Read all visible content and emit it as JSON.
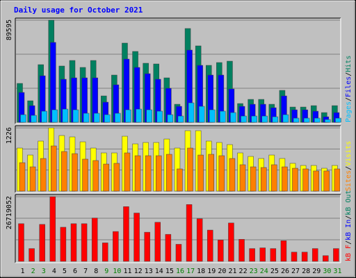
{
  "chart_data": [
    {
      "type": "bar",
      "title": "Daily usage for October 2021",
      "legend_separator": "/",
      "ylim": [
        0,
        89595
      ],
      "yticks": [
        89595
      ],
      "series": [
        {
          "name": "Hits",
          "color": "#008060",
          "values": [
            34132,
            18895,
            50590,
            89595,
            49370,
            54246,
            48151,
            54246,
            23161,
            41446,
            69483,
            62169,
            51808,
            51198,
            39008,
            15847,
            82283,
            67045,
            49979,
            52417,
            53636,
            16457,
            20114,
            20114,
            15847,
            28037,
            13409,
            13409,
            14628,
            8533,
            14628
          ]
        },
        {
          "name": "Files",
          "color": "#0000ff",
          "values": [
            26209,
            14628,
            40837,
            70093,
            37789,
            39008,
            39008,
            39008,
            17676,
            32913,
            55465,
            48151,
            42665,
            37789,
            29866,
            14019,
            63388,
            49979,
            41446,
            41446,
            29256,
            14019,
            15847,
            15847,
            12800,
            23161,
            10971,
            10971,
            9752,
            4876,
            8533
          ]
        },
        {
          "name": "Pages",
          "color": "#00c0ff",
          "values": [
            6705,
            6095,
            9752,
            10971,
            11581,
            10971,
            7924,
            7924,
            6705,
            7924,
            10971,
            11581,
            10971,
            9752,
            6705,
            5486,
            17066,
            14019,
            10971,
            9752,
            8533,
            5486,
            5486,
            5486,
            4876,
            6705,
            3657,
            3657,
            3657,
            2438,
            3657
          ]
        }
      ]
    },
    {
      "type": "bar",
      "legend_separator": "/",
      "ylim": [
        0,
        1226
      ],
      "yticks": [
        1226
      ],
      "series": [
        {
          "name": "Visits",
          "color": "#ffff00",
          "values": [
            835,
            700,
            970,
            1226,
            1078,
            1051,
            956,
            835,
            741,
            741,
            1064,
            916,
            943,
            943,
            1010,
            835,
            1172,
            1172,
            970,
            943,
            902,
            741,
            673,
            633,
            700,
            633,
            539,
            498,
            498,
            444,
            498
          ]
        },
        {
          "name": "Sites",
          "color": "#ff8000",
          "values": [
            552,
            471,
            633,
            876,
            768,
            727,
            620,
            593,
            525,
            539,
            741,
            687,
            687,
            687,
            714,
            431,
            835,
            700,
            714,
            687,
            633,
            512,
            471,
            458,
            512,
            471,
            444,
            431,
            391,
            391,
            431
          ]
        }
      ]
    },
    {
      "type": "bar",
      "legend_separator": "/",
      "ylim": [
        0,
        26719052
      ],
      "yticks": [
        26719052
      ],
      "series": [
        {
          "name": "kB F",
          "color": "#ff0000",
          "values": [
            15561648,
            5285088,
            15268032,
            26719052,
            14093568,
            15561648,
            15561648,
            17910576,
            7634016,
            12331872,
            22608432,
            19965888,
            12038256,
            16148880,
            11157408,
            7046784,
            23489280,
            17616960,
            12919104,
            8808480,
            15855264,
            9102096,
            5285088,
            5578704,
            5285088,
            8514864,
            3817008,
            3817008,
            5285088,
            2348928,
            5285088
          ]
        }
      ],
      "legend_only": [
        {
          "name": "kB In",
          "color": "#0000ff"
        },
        {
          "name": "kB Out",
          "color": "#008060"
        }
      ],
      "categories": [
        "1",
        "2",
        "3",
        "4",
        "5",
        "6",
        "7",
        "8",
        "9",
        "10",
        "11",
        "12",
        "13",
        "14",
        "15",
        "16",
        "17",
        "18",
        "19",
        "20",
        "21",
        "22",
        "23",
        "24",
        "25",
        "26",
        "27",
        "28",
        "29",
        "30",
        "31"
      ],
      "category_colors": [
        "#000000",
        "#008000",
        "#008000",
        "#000000",
        "#000000",
        "#000000",
        "#000000",
        "#000000",
        "#008000",
        "#008000",
        "#000000",
        "#000000",
        "#000000",
        "#000000",
        "#000000",
        "#008000",
        "#008000",
        "#000000",
        "#000000",
        "#000000",
        "#000000",
        "#000000",
        "#008000",
        "#008000",
        "#000000",
        "#000000",
        "#000000",
        "#000000",
        "#000000",
        "#008000",
        "#008000"
      ]
    }
  ]
}
